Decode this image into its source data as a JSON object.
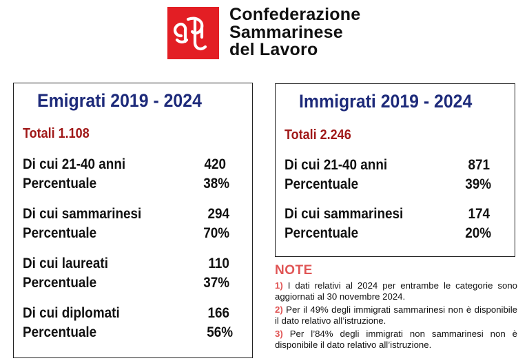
{
  "header": {
    "org_line1": "Confederazione",
    "org_line2": "Sammarinese",
    "org_line3": "del Lavoro",
    "logo_color": "#e31e24"
  },
  "emigrati": {
    "title": "Emigrati 2019 - 2024",
    "total": "Totali 1.108",
    "rows": [
      {
        "label": "Di cui 21-40 anni",
        "value": "420"
      },
      {
        "label": "Percentuale",
        "value": "38%"
      },
      {
        "label": "Di cui sammarinesi",
        "value": "294"
      },
      {
        "label": "Percentuale",
        "value": "70%"
      },
      {
        "label": "Di cui laureati",
        "value": "110"
      },
      {
        "label": "Percentuale",
        "value": "37%"
      },
      {
        "label": "Di cui diplomati",
        "value": "166"
      },
      {
        "label": "Percentuale",
        "value": "56%"
      }
    ]
  },
  "immigrati": {
    "title": "Immigrati 2019 - 2024",
    "total": "Totali 2.246",
    "rows": [
      {
        "label": "Di cui 21-40 anni",
        "value": "871"
      },
      {
        "label": "Percentuale",
        "value": "39%"
      },
      {
        "label": "Di cui sammarinesi",
        "value": "174"
      },
      {
        "label": "Percentuale",
        "value": "20%"
      }
    ]
  },
  "notes": {
    "title": "NOTE",
    "items": [
      {
        "num": "1)",
        "text": "I dati relativi al 2024 per entrambe le categorie sono aggiornati al 30 novembre 2024."
      },
      {
        "num": "2)",
        "text": "Per il 49% degli immigrati sammarinesi non è disponibile il dato relativo all’istruzione."
      },
      {
        "num": "3)",
        "text": "Per l’84% degli immigrati non sammarinesi non è disponibile il dato relativo all’istruzione."
      }
    ]
  },
  "colors": {
    "title_blue": "#1d2a7a",
    "total_red": "#a01818",
    "note_red": "#e05555"
  }
}
